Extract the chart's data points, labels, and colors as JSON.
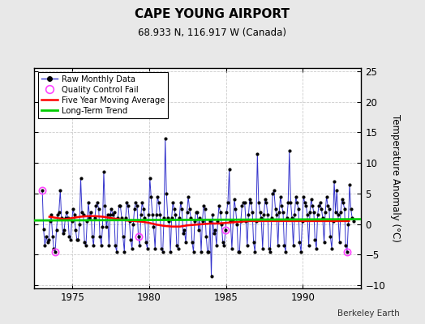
{
  "title": "CAPE YOUNG AIRPORT",
  "subtitle": "68.933 N, 116.917 W (Canada)",
  "ylabel": "Temperature Anomaly (°C)",
  "attribution": "Berkeley Earth",
  "xlim": [
    1972.5,
    1993.8
  ],
  "ylim": [
    -10.5,
    25.5
  ],
  "yticks": [
    -10,
    -5,
    0,
    5,
    10,
    15,
    20,
    25
  ],
  "xticks": [
    1975,
    1980,
    1985,
    1990
  ],
  "bg_color": "#e8e8e8",
  "plot_bg_color": "#ffffff",
  "raw_color": "#3333cc",
  "raw_dot_color": "#000000",
  "ma_color": "#ff0000",
  "trend_color": "#00cc00",
  "qc_color": "#ff44ff",
  "raw_data": [
    [
      1973.04,
      5.5
    ],
    [
      1973.12,
      -0.8
    ],
    [
      1973.21,
      -3.5
    ],
    [
      1973.29,
      -2.0
    ],
    [
      1973.38,
      -3.0
    ],
    [
      1973.46,
      -2.5
    ],
    [
      1973.54,
      0.5
    ],
    [
      1973.62,
      1.5
    ],
    [
      1973.71,
      -2.0
    ],
    [
      1973.79,
      -4.0
    ],
    [
      1973.88,
      -4.5
    ],
    [
      1973.96,
      -1.0
    ],
    [
      1974.04,
      1.5
    ],
    [
      1974.12,
      2.0
    ],
    [
      1974.21,
      5.5
    ],
    [
      1974.29,
      1.0
    ],
    [
      1974.38,
      -1.5
    ],
    [
      1974.46,
      -1.0
    ],
    [
      1974.54,
      1.0
    ],
    [
      1974.62,
      2.0
    ],
    [
      1974.71,
      1.0
    ],
    [
      1974.79,
      -2.0
    ],
    [
      1974.88,
      -2.5
    ],
    [
      1974.96,
      0.5
    ],
    [
      1975.04,
      2.5
    ],
    [
      1975.12,
      1.5
    ],
    [
      1975.21,
      -1.0
    ],
    [
      1975.29,
      -2.5
    ],
    [
      1975.38,
      -2.5
    ],
    [
      1975.46,
      0.0
    ],
    [
      1975.54,
      7.5
    ],
    [
      1975.62,
      2.0
    ],
    [
      1975.71,
      1.5
    ],
    [
      1975.79,
      -3.0
    ],
    [
      1975.88,
      -3.5
    ],
    [
      1975.96,
      0.5
    ],
    [
      1976.04,
      3.5
    ],
    [
      1976.12,
      1.0
    ],
    [
      1976.21,
      2.0
    ],
    [
      1976.29,
      -2.0
    ],
    [
      1976.38,
      -3.5
    ],
    [
      1976.46,
      1.0
    ],
    [
      1976.54,
      3.0
    ],
    [
      1976.62,
      3.5
    ],
    [
      1976.71,
      2.5
    ],
    [
      1976.79,
      -2.0
    ],
    [
      1976.88,
      -3.5
    ],
    [
      1976.96,
      -0.5
    ],
    [
      1977.04,
      8.5
    ],
    [
      1977.12,
      3.0
    ],
    [
      1977.21,
      -0.5
    ],
    [
      1977.29,
      1.5
    ],
    [
      1977.38,
      -3.5
    ],
    [
      1977.46,
      1.5
    ],
    [
      1977.54,
      2.5
    ],
    [
      1977.62,
      1.5
    ],
    [
      1977.71,
      2.0
    ],
    [
      1977.79,
      -3.5
    ],
    [
      1977.88,
      -4.5
    ],
    [
      1977.96,
      1.0
    ],
    [
      1978.04,
      3.0
    ],
    [
      1978.12,
      3.0
    ],
    [
      1978.21,
      1.0
    ],
    [
      1978.29,
      -2.0
    ],
    [
      1978.38,
      -4.5
    ],
    [
      1978.46,
      1.0
    ],
    [
      1978.54,
      3.5
    ],
    [
      1978.62,
      3.0
    ],
    [
      1978.71,
      0.5
    ],
    [
      1978.79,
      -2.5
    ],
    [
      1978.88,
      -4.0
    ],
    [
      1978.96,
      0.0
    ],
    [
      1979.04,
      2.5
    ],
    [
      1979.12,
      3.5
    ],
    [
      1979.21,
      3.0
    ],
    [
      1979.29,
      -2.0
    ],
    [
      1979.38,
      -3.5
    ],
    [
      1979.46,
      1.5
    ],
    [
      1979.54,
      3.5
    ],
    [
      1979.62,
      2.5
    ],
    [
      1979.71,
      1.0
    ],
    [
      1979.79,
      -3.0
    ],
    [
      1979.88,
      -4.0
    ],
    [
      1979.96,
      1.5
    ],
    [
      1980.04,
      7.5
    ],
    [
      1980.12,
      4.5
    ],
    [
      1980.21,
      1.5
    ],
    [
      1980.29,
      -0.5
    ],
    [
      1980.38,
      -4.0
    ],
    [
      1980.46,
      1.5
    ],
    [
      1980.54,
      4.5
    ],
    [
      1980.62,
      3.5
    ],
    [
      1980.71,
      1.5
    ],
    [
      1980.79,
      -4.0
    ],
    [
      1980.88,
      -4.5
    ],
    [
      1980.96,
      1.0
    ],
    [
      1981.04,
      14.0
    ],
    [
      1981.12,
      5.0
    ],
    [
      1981.21,
      1.0
    ],
    [
      1981.29,
      0.5
    ],
    [
      1981.38,
      -4.5
    ],
    [
      1981.46,
      1.0
    ],
    [
      1981.54,
      3.5
    ],
    [
      1981.62,
      2.5
    ],
    [
      1981.71,
      1.5
    ],
    [
      1981.79,
      -3.5
    ],
    [
      1981.88,
      -4.0
    ],
    [
      1981.96,
      1.0
    ],
    [
      1982.04,
      3.5
    ],
    [
      1982.12,
      2.5
    ],
    [
      1982.21,
      -1.5
    ],
    [
      1982.29,
      -1.0
    ],
    [
      1982.38,
      -3.0
    ],
    [
      1982.46,
      2.0
    ],
    [
      1982.54,
      4.5
    ],
    [
      1982.62,
      2.5
    ],
    [
      1982.71,
      1.0
    ],
    [
      1982.79,
      -3.0
    ],
    [
      1982.88,
      -4.5
    ],
    [
      1982.96,
      0.5
    ],
    [
      1983.04,
      2.0
    ],
    [
      1983.12,
      2.0
    ],
    [
      1983.21,
      -1.0
    ],
    [
      1983.29,
      1.0
    ],
    [
      1983.38,
      -4.5
    ],
    [
      1983.46,
      0.5
    ],
    [
      1983.54,
      3.0
    ],
    [
      1983.62,
      2.5
    ],
    [
      1983.71,
      -2.0
    ],
    [
      1983.79,
      -4.5
    ],
    [
      1983.88,
      -4.5
    ],
    [
      1983.96,
      0.5
    ],
    [
      1984.04,
      -8.5
    ],
    [
      1984.12,
      1.5
    ],
    [
      1984.21,
      -1.5
    ],
    [
      1984.29,
      -1.0
    ],
    [
      1984.38,
      -3.5
    ],
    [
      1984.46,
      0.5
    ],
    [
      1984.54,
      3.0
    ],
    [
      1984.62,
      2.0
    ],
    [
      1984.71,
      0.0
    ],
    [
      1984.79,
      -3.0
    ],
    [
      1984.88,
      -3.5
    ],
    [
      1984.96,
      -1.0
    ],
    [
      1985.04,
      2.0
    ],
    [
      1985.12,
      3.5
    ],
    [
      1985.21,
      9.0
    ],
    [
      1985.29,
      0.5
    ],
    [
      1985.38,
      -4.0
    ],
    [
      1985.46,
      0.5
    ],
    [
      1985.54,
      4.0
    ],
    [
      1985.62,
      2.5
    ],
    [
      1985.71,
      0.0
    ],
    [
      1985.79,
      -4.5
    ],
    [
      1985.88,
      -4.5
    ],
    [
      1985.96,
      0.5
    ],
    [
      1986.04,
      3.0
    ],
    [
      1986.12,
      3.5
    ],
    [
      1986.21,
      3.5
    ],
    [
      1986.29,
      0.5
    ],
    [
      1986.38,
      -3.5
    ],
    [
      1986.46,
      1.5
    ],
    [
      1986.54,
      4.0
    ],
    [
      1986.62,
      3.5
    ],
    [
      1986.71,
      2.0
    ],
    [
      1986.79,
      -3.0
    ],
    [
      1986.88,
      -4.5
    ],
    [
      1986.96,
      0.5
    ],
    [
      1987.04,
      11.5
    ],
    [
      1987.12,
      3.5
    ],
    [
      1987.21,
      2.0
    ],
    [
      1987.29,
      1.0
    ],
    [
      1987.38,
      -4.0
    ],
    [
      1987.46,
      1.5
    ],
    [
      1987.54,
      4.0
    ],
    [
      1987.62,
      3.5
    ],
    [
      1987.71,
      1.5
    ],
    [
      1987.79,
      -4.0
    ],
    [
      1987.88,
      -4.5
    ],
    [
      1987.96,
      1.0
    ],
    [
      1988.04,
      5.0
    ],
    [
      1988.12,
      5.5
    ],
    [
      1988.21,
      2.5
    ],
    [
      1988.29,
      1.5
    ],
    [
      1988.38,
      -3.5
    ],
    [
      1988.46,
      2.0
    ],
    [
      1988.54,
      4.5
    ],
    [
      1988.62,
      3.0
    ],
    [
      1988.71,
      2.0
    ],
    [
      1988.79,
      -3.5
    ],
    [
      1988.88,
      -4.5
    ],
    [
      1988.96,
      1.0
    ],
    [
      1989.04,
      3.5
    ],
    [
      1989.12,
      12.0
    ],
    [
      1989.21,
      3.5
    ],
    [
      1989.29,
      1.0
    ],
    [
      1989.38,
      -3.5
    ],
    [
      1989.46,
      1.5
    ],
    [
      1989.54,
      4.5
    ],
    [
      1989.62,
      3.5
    ],
    [
      1989.71,
      2.5
    ],
    [
      1989.79,
      -3.0
    ],
    [
      1989.88,
      -4.5
    ],
    [
      1989.96,
      0.5
    ],
    [
      1990.04,
      4.5
    ],
    [
      1990.12,
      3.5
    ],
    [
      1990.21,
      3.0
    ],
    [
      1990.29,
      1.5
    ],
    [
      1990.38,
      -3.5
    ],
    [
      1990.46,
      2.0
    ],
    [
      1990.54,
      4.0
    ],
    [
      1990.62,
      3.0
    ],
    [
      1990.71,
      2.0
    ],
    [
      1990.79,
      -2.5
    ],
    [
      1990.88,
      -4.0
    ],
    [
      1990.96,
      1.5
    ],
    [
      1991.04,
      3.0
    ],
    [
      1991.12,
      3.5
    ],
    [
      1991.21,
      2.5
    ],
    [
      1991.29,
      1.0
    ],
    [
      1991.38,
      -3.0
    ],
    [
      1991.46,
      2.0
    ],
    [
      1991.54,
      4.5
    ],
    [
      1991.62,
      3.0
    ],
    [
      1991.71,
      2.5
    ],
    [
      1991.79,
      -2.0
    ],
    [
      1991.88,
      -4.0
    ],
    [
      1991.96,
      0.5
    ],
    [
      1992.04,
      7.0
    ],
    [
      1992.12,
      2.0
    ],
    [
      1992.21,
      5.5
    ],
    [
      1992.29,
      1.5
    ],
    [
      1992.38,
      -3.0
    ],
    [
      1992.46,
      2.0
    ],
    [
      1992.54,
      4.0
    ],
    [
      1992.62,
      3.5
    ],
    [
      1992.71,
      2.5
    ],
    [
      1992.79,
      -3.5
    ],
    [
      1992.88,
      -4.5
    ],
    [
      1992.96,
      0.0
    ],
    [
      1993.04,
      6.5
    ],
    [
      1993.12,
      2.5
    ],
    [
      1993.21,
      1.0
    ],
    [
      1993.29,
      0.5
    ]
  ],
  "qc_fail_points": [
    [
      1973.04,
      5.5
    ],
    [
      1973.88,
      -4.5
    ],
    [
      1979.29,
      -2.0
    ],
    [
      1984.96,
      -1.0
    ],
    [
      1992.88,
      -4.5
    ]
  ],
  "moving_avg": [
    [
      1973.5,
      1.2
    ],
    [
      1974.0,
      1.0
    ],
    [
      1974.5,
      0.8
    ],
    [
      1975.0,
      1.0
    ],
    [
      1975.5,
      1.2
    ],
    [
      1976.0,
      1.3
    ],
    [
      1976.5,
      1.3
    ],
    [
      1977.0,
      1.2
    ],
    [
      1977.5,
      1.0
    ],
    [
      1978.0,
      0.8
    ],
    [
      1978.5,
      0.6
    ],
    [
      1979.0,
      0.5
    ],
    [
      1979.5,
      0.4
    ],
    [
      1980.0,
      0.2
    ],
    [
      1980.5,
      -0.1
    ],
    [
      1981.0,
      -0.3
    ],
    [
      1981.5,
      -0.4
    ],
    [
      1982.0,
      -0.4
    ],
    [
      1982.5,
      -0.2
    ],
    [
      1983.0,
      -0.1
    ],
    [
      1983.5,
      0.0
    ],
    [
      1984.0,
      0.1
    ],
    [
      1984.5,
      0.1
    ],
    [
      1985.0,
      0.2
    ],
    [
      1985.5,
      0.3
    ],
    [
      1986.0,
      0.4
    ],
    [
      1986.5,
      0.5
    ],
    [
      1987.0,
      0.5
    ],
    [
      1987.5,
      0.5
    ],
    [
      1988.0,
      0.5
    ],
    [
      1988.5,
      0.5
    ],
    [
      1989.0,
      0.5
    ],
    [
      1989.5,
      0.5
    ],
    [
      1990.0,
      0.5
    ],
    [
      1990.5,
      0.5
    ],
    [
      1991.0,
      0.5
    ],
    [
      1991.5,
      0.5
    ],
    [
      1992.0,
      0.5
    ],
    [
      1992.5,
      0.5
    ],
    [
      1993.0,
      0.5
    ]
  ],
  "trend_x": [
    1972.5,
    1993.8
  ],
  "trend_y": [
    0.6,
    0.8
  ]
}
